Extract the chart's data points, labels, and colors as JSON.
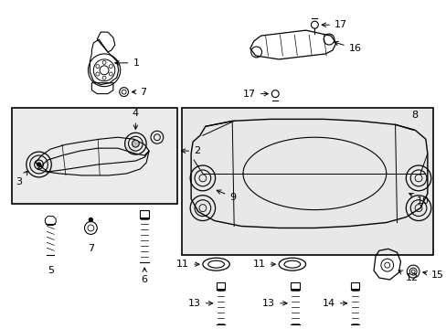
{
  "background_color": "#ffffff",
  "fig_width": 4.89,
  "fig_height": 3.6,
  "dpi": 100,
  "line_color": "#000000",
  "arrow_color": "#000000",
  "label_fontsize": 7.5,
  "gray_fill": "#e8e8e8",
  "light_gray": "#ebebeb"
}
